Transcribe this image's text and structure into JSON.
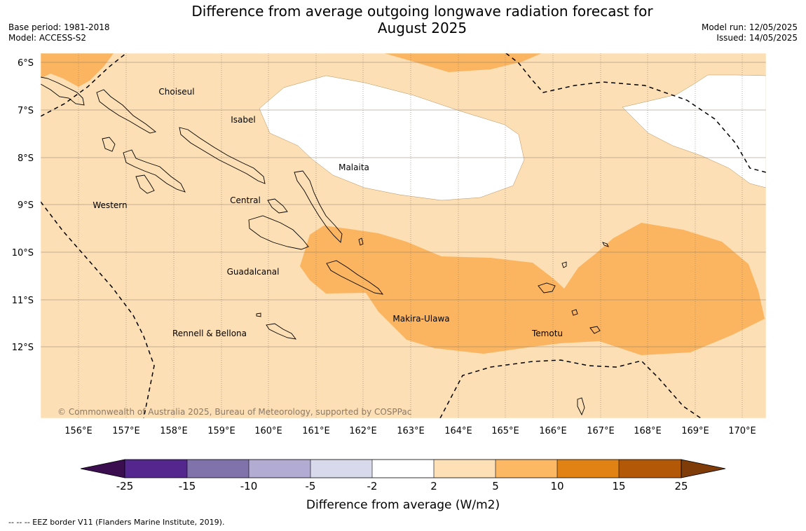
{
  "header": {
    "title_line1": "Difference from average outgoing longwave radiation forecast for",
    "title_line2": "August 2025",
    "base_period": "Base period: 1981-2018",
    "model": "Model: ACCESS-S2",
    "model_run": "Model run: 12/05/2025",
    "issued": "Issued: 14/05/2025"
  },
  "map": {
    "lat_labels": [
      "6°S",
      "7°S",
      "8°S",
      "9°S",
      "10°S",
      "11°S",
      "12°S"
    ],
    "lon_labels": [
      "156°E",
      "157°E",
      "158°E",
      "159°E",
      "160°E",
      "161°E",
      "162°E",
      "163°E",
      "164°E",
      "165°E",
      "166°E",
      "167°E",
      "168°E",
      "169°E",
      "170°E"
    ],
    "regions": {
      "choiseul": "Choiseul",
      "isabel": "Isabel",
      "malaita": "Malaita",
      "western": "Western",
      "central": "Central",
      "guadalcanal": "Guadalcanal",
      "makira": "Makira-Ulawa",
      "rennell": "Rennell & Bellona",
      "temotu": "Temotu"
    },
    "copyright": "© Commonwealth of Australia 2025, Bureau of Meteorology, supported by COSPPac",
    "colors": {
      "ocean_base": "#fddfb5",
      "anomaly_5_10": "#fbb561",
      "anomaly_neutral": "#ffffff"
    }
  },
  "colorbar": {
    "label": "Difference from average (W/m2)",
    "ticks": [
      "-25",
      "-15",
      "-10",
      "-5",
      "-2",
      "2",
      "5",
      "10",
      "15",
      "25"
    ],
    "colors": [
      "#3b0f4f",
      "#54278f",
      "#8073ac",
      "#b2abd2",
      "#d8daeb",
      "#ffffff",
      "#fee0b6",
      "#fdb863",
      "#e08214",
      "#b35806",
      "#7f3b08"
    ]
  },
  "footer": {
    "legend_text": "--  --  -- EEZ border V11 (Flanders Marine Institute, 2019)."
  }
}
